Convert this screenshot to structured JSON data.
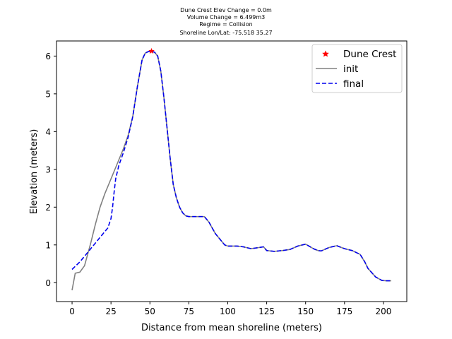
{
  "title_lines": [
    "Dune Crest Elev Change = 0.0m",
    "Volume Change = 6.499m3",
    "Regime = Collision",
    "Shoreline Lon/Lat: -75.518 35.27"
  ],
  "chart_data": {
    "type": "line",
    "xlabel": "Distance from mean shoreline (meters)",
    "ylabel": "Elevation (meters)",
    "xlim": [
      -10,
      215
    ],
    "ylim": [
      -0.5,
      6.4
    ],
    "xticks": [
      0,
      25,
      50,
      75,
      100,
      125,
      150,
      175,
      200
    ],
    "yticks": [
      0,
      1,
      2,
      3,
      4,
      5,
      6
    ],
    "legend_position": "upper right",
    "series": [
      {
        "name": "init",
        "color": "#808080",
        "style": "solid",
        "x": [
          0,
          2,
          5,
          8,
          10,
          12,
          15,
          18,
          21,
          24,
          27,
          30,
          33,
          36,
          39,
          42,
          45,
          47,
          49,
          51,
          53,
          55,
          57,
          59,
          61,
          63,
          65,
          67,
          69,
          71,
          73,
          75,
          78,
          80,
          85,
          88,
          90,
          92,
          95,
          98,
          100,
          103,
          106,
          110,
          115,
          120,
          123,
          125,
          130,
          135,
          140,
          145,
          150,
          155,
          158,
          160,
          165,
          170,
          175,
          180,
          185,
          188,
          190,
          195,
          199,
          202,
          205
        ],
        "y": [
          -0.2,
          0.25,
          0.28,
          0.45,
          0.75,
          1.05,
          1.55,
          2.0,
          2.35,
          2.65,
          2.95,
          3.25,
          3.55,
          3.9,
          4.4,
          5.2,
          5.9,
          6.08,
          6.12,
          6.13,
          6.1,
          6.0,
          5.6,
          4.9,
          4.1,
          3.3,
          2.6,
          2.25,
          2.0,
          1.85,
          1.77,
          1.75,
          1.75,
          1.75,
          1.75,
          1.6,
          1.45,
          1.3,
          1.15,
          1.0,
          0.97,
          0.97,
          0.97,
          0.95,
          0.9,
          0.93,
          0.95,
          0.85,
          0.83,
          0.85,
          0.88,
          0.97,
          1.02,
          0.9,
          0.85,
          0.84,
          0.93,
          0.98,
          0.9,
          0.85,
          0.75,
          0.55,
          0.38,
          0.15,
          0.06,
          0.05,
          0.05
        ]
      },
      {
        "name": "final",
        "color": "#0000ee",
        "style": "dashed",
        "x": [
          0,
          5,
          10,
          15,
          20,
          23,
          25,
          26,
          27,
          28,
          30,
          33,
          36,
          39,
          42,
          45,
          47,
          49,
          51,
          53,
          55,
          57,
          59,
          61,
          63,
          65,
          67,
          69,
          71,
          73,
          75,
          78,
          80,
          85,
          88,
          90,
          92,
          95,
          98,
          100,
          103,
          106,
          110,
          115,
          120,
          123,
          125,
          130,
          135,
          140,
          145,
          150,
          155,
          158,
          160,
          165,
          170,
          175,
          180,
          185,
          188,
          190,
          195,
          199,
          202,
          205
        ],
        "y": [
          0.35,
          0.55,
          0.8,
          1.05,
          1.3,
          1.45,
          1.7,
          2.0,
          2.4,
          2.75,
          3.1,
          3.45,
          3.85,
          4.4,
          5.2,
          5.9,
          6.08,
          6.12,
          6.13,
          6.1,
          6.0,
          5.6,
          4.9,
          4.1,
          3.3,
          2.6,
          2.25,
          2.0,
          1.85,
          1.77,
          1.75,
          1.75,
          1.75,
          1.75,
          1.6,
          1.45,
          1.3,
          1.15,
          1.0,
          0.97,
          0.97,
          0.97,
          0.95,
          0.9,
          0.93,
          0.95,
          0.85,
          0.83,
          0.85,
          0.88,
          0.97,
          1.02,
          0.9,
          0.85,
          0.84,
          0.93,
          0.98,
          0.9,
          0.85,
          0.75,
          0.55,
          0.38,
          0.15,
          0.06,
          0.05,
          0.05
        ]
      },
      {
        "name": "Dune Crest",
        "color": "#ff0000",
        "style": "star-marker",
        "x": [
          51
        ],
        "y": [
          6.13
        ]
      }
    ],
    "legend_entries": [
      "Dune Crest",
      "init",
      "final"
    ]
  }
}
